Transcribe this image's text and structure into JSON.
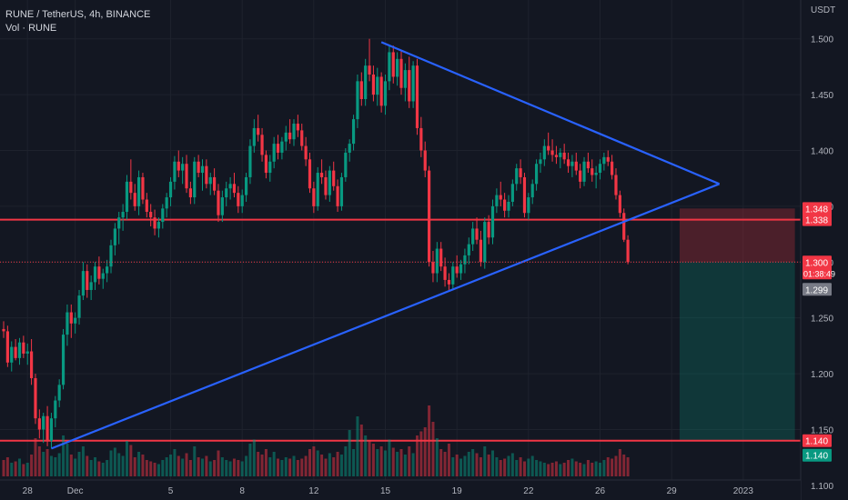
{
  "header": {
    "symbol_line": "RUNE / TetherUS, 4h, BINANCE",
    "volume_line": "Vol · RUNE"
  },
  "chart_data": {
    "type": "candlestick",
    "currency_label": "USDT",
    "ylim": [
      1.095,
      1.525
    ],
    "y_ticks": [
      1.1,
      1.15,
      1.2,
      1.25,
      1.3,
      1.35,
      1.4,
      1.45,
      1.5
    ],
    "x_ticks": [
      {
        "i": 6,
        "label": "28"
      },
      {
        "i": 18,
        "label": "Dec"
      },
      {
        "i": 42,
        "label": "5"
      },
      {
        "i": 60,
        "label": "8"
      },
      {
        "i": 78,
        "label": "12"
      },
      {
        "i": 96,
        "label": "15"
      },
      {
        "i": 114,
        "label": "19"
      },
      {
        "i": 132,
        "label": "22"
      },
      {
        "i": 150,
        "label": "26"
      },
      {
        "i": 168,
        "label": "29"
      },
      {
        "i": 186,
        "label": "2023"
      }
    ],
    "horizontal_lines": [
      1.338,
      1.14
    ],
    "price_tags": [
      {
        "value": 1.348,
        "label": "1.348",
        "bg": "#f23645"
      },
      {
        "value": 1.338,
        "label": "1.338",
        "bg": "#f23645"
      },
      {
        "value": 1.3,
        "label": "1.300",
        "sub": "01:38:49",
        "bg": "#f23645"
      },
      {
        "value": 1.299,
        "label": "1.299",
        "bg": "#787b86"
      },
      {
        "value": 1.14,
        "label": "1.140",
        "bg": "#f23645"
      },
      {
        "value": 1.14,
        "label": "1.140",
        "bg": "#089981"
      }
    ],
    "trendlines": [
      {
        "from": [
          95,
          1.497
        ],
        "to": [
          180,
          1.37
        ]
      },
      {
        "from": [
          12,
          1.133
        ],
        "to": [
          180,
          1.37
        ]
      }
    ],
    "position": {
      "entry": 1.3,
      "stop": 1.348,
      "target": 1.14,
      "start_i": 170,
      "end_i": 199
    },
    "ohlc": [
      [
        1.24,
        1.247,
        1.232,
        1.238
      ],
      [
        1.238,
        1.243,
        1.206,
        1.21
      ],
      [
        1.21,
        1.229,
        1.202,
        1.224
      ],
      [
        1.224,
        1.231,
        1.212,
        1.214
      ],
      [
        1.214,
        1.232,
        1.208,
        1.228
      ],
      [
        1.228,
        1.234,
        1.214,
        1.218
      ],
      [
        1.218,
        1.227,
        1.208,
        1.22
      ],
      [
        1.22,
        1.231,
        1.19,
        1.196
      ],
      [
        1.196,
        1.2,
        1.155,
        1.16
      ],
      [
        1.16,
        1.168,
        1.142,
        1.15
      ],
      [
        1.15,
        1.165,
        1.138,
        1.162
      ],
      [
        1.162,
        1.171,
        1.135,
        1.14
      ],
      [
        1.14,
        1.165,
        1.133,
        1.16
      ],
      [
        1.16,
        1.18,
        1.152,
        1.176
      ],
      [
        1.176,
        1.195,
        1.17,
        1.19
      ],
      [
        1.19,
        1.24,
        1.186,
        1.235
      ],
      [
        1.235,
        1.262,
        1.225,
        1.255
      ],
      [
        1.255,
        1.262,
        1.232,
        1.245
      ],
      [
        1.245,
        1.255,
        1.236,
        1.25
      ],
      [
        1.25,
        1.275,
        1.244,
        1.27
      ],
      [
        1.27,
        1.3,
        1.266,
        1.292
      ],
      [
        1.292,
        1.298,
        1.268,
        1.275
      ],
      [
        1.275,
        1.288,
        1.266,
        1.282
      ],
      [
        1.282,
        1.3,
        1.275,
        1.296
      ],
      [
        1.296,
        1.305,
        1.28,
        1.285
      ],
      [
        1.285,
        1.294,
        1.276,
        1.29
      ],
      [
        1.29,
        1.302,
        1.282,
        1.296
      ],
      [
        1.296,
        1.32,
        1.29,
        1.315
      ],
      [
        1.315,
        1.335,
        1.306,
        1.33
      ],
      [
        1.33,
        1.345,
        1.316,
        1.34
      ],
      [
        1.34,
        1.352,
        1.328,
        1.345
      ],
      [
        1.345,
        1.378,
        1.338,
        1.372
      ],
      [
        1.372,
        1.392,
        1.356,
        1.362
      ],
      [
        1.362,
        1.37,
        1.346,
        1.35
      ],
      [
        1.35,
        1.382,
        1.342,
        1.376
      ],
      [
        1.376,
        1.38,
        1.352,
        1.356
      ],
      [
        1.356,
        1.362,
        1.34,
        1.345
      ],
      [
        1.345,
        1.352,
        1.332,
        1.34
      ],
      [
        1.34,
        1.347,
        1.324,
        1.33
      ],
      [
        1.33,
        1.34,
        1.322,
        1.336
      ],
      [
        1.336,
        1.352,
        1.33,
        1.348
      ],
      [
        1.348,
        1.362,
        1.34,
        1.358
      ],
      [
        1.358,
        1.376,
        1.35,
        1.372
      ],
      [
        1.372,
        1.395,
        1.365,
        1.39
      ],
      [
        1.39,
        1.4,
        1.376,
        1.382
      ],
      [
        1.382,
        1.394,
        1.37,
        1.388
      ],
      [
        1.388,
        1.396,
        1.362,
        1.366
      ],
      [
        1.366,
        1.372,
        1.352,
        1.358
      ],
      [
        1.358,
        1.394,
        1.352,
        1.39
      ],
      [
        1.39,
        1.396,
        1.376,
        1.38
      ],
      [
        1.38,
        1.392,
        1.364,
        1.386
      ],
      [
        1.386,
        1.392,
        1.366,
        1.37
      ],
      [
        1.37,
        1.38,
        1.36,
        1.376
      ],
      [
        1.376,
        1.384,
        1.36,
        1.364
      ],
      [
        1.364,
        1.37,
        1.336,
        1.342
      ],
      [
        1.342,
        1.364,
        1.336,
        1.358
      ],
      [
        1.358,
        1.372,
        1.35,
        1.366
      ],
      [
        1.366,
        1.376,
        1.356,
        1.37
      ],
      [
        1.37,
        1.38,
        1.358,
        1.362
      ],
      [
        1.362,
        1.368,
        1.344,
        1.35
      ],
      [
        1.35,
        1.365,
        1.344,
        1.36
      ],
      [
        1.36,
        1.38,
        1.354,
        1.376
      ],
      [
        1.376,
        1.41,
        1.37,
        1.404
      ],
      [
        1.404,
        1.428,
        1.398,
        1.42
      ],
      [
        1.42,
        1.432,
        1.408,
        1.414
      ],
      [
        1.414,
        1.42,
        1.39,
        1.396
      ],
      [
        1.396,
        1.4,
        1.375,
        1.38
      ],
      [
        1.38,
        1.396,
        1.372,
        1.39
      ],
      [
        1.39,
        1.412,
        1.384,
        1.406
      ],
      [
        1.406,
        1.414,
        1.392,
        1.398
      ],
      [
        1.398,
        1.412,
        1.392,
        1.408
      ],
      [
        1.408,
        1.422,
        1.4,
        1.416
      ],
      [
        1.416,
        1.428,
        1.406,
        1.41
      ],
      [
        1.41,
        1.428,
        1.404,
        1.424
      ],
      [
        1.424,
        1.432,
        1.412,
        1.418
      ],
      [
        1.418,
        1.424,
        1.4,
        1.404
      ],
      [
        1.404,
        1.412,
        1.386,
        1.392
      ],
      [
        1.392,
        1.398,
        1.362,
        1.366
      ],
      [
        1.366,
        1.372,
        1.344,
        1.35
      ],
      [
        1.35,
        1.385,
        1.346,
        1.38
      ],
      [
        1.38,
        1.392,
        1.37,
        1.376
      ],
      [
        1.376,
        1.382,
        1.356,
        1.36
      ],
      [
        1.36,
        1.386,
        1.354,
        1.382
      ],
      [
        1.382,
        1.39,
        1.364,
        1.368
      ],
      [
        1.368,
        1.374,
        1.345,
        1.35
      ],
      [
        1.35,
        1.38,
        1.346,
        1.376
      ],
      [
        1.376,
        1.402,
        1.372,
        1.398
      ],
      [
        1.398,
        1.41,
        1.39,
        1.406
      ],
      [
        1.406,
        1.432,
        1.4,
        1.428
      ],
      [
        1.428,
        1.468,
        1.42,
        1.462
      ],
      [
        1.462,
        1.47,
        1.44,
        1.446
      ],
      [
        1.446,
        1.482,
        1.44,
        1.476
      ],
      [
        1.476,
        1.5,
        1.462,
        1.468
      ],
      [
        1.468,
        1.476,
        1.444,
        1.45
      ],
      [
        1.45,
        1.474,
        1.44,
        1.466
      ],
      [
        1.466,
        1.47,
        1.434,
        1.44
      ],
      [
        1.44,
        1.468,
        1.432,
        1.462
      ],
      [
        1.462,
        1.494,
        1.454,
        1.488
      ],
      [
        1.488,
        1.494,
        1.46,
        1.466
      ],
      [
        1.466,
        1.488,
        1.458,
        1.482
      ],
      [
        1.482,
        1.49,
        1.45,
        1.456
      ],
      [
        1.456,
        1.478,
        1.444,
        1.472
      ],
      [
        1.472,
        1.484,
        1.438,
        1.444
      ],
      [
        1.444,
        1.48,
        1.438,
        1.476
      ],
      [
        1.476,
        1.482,
        1.414,
        1.42
      ],
      [
        1.42,
        1.43,
        1.394,
        1.4
      ],
      [
        1.4,
        1.408,
        1.376,
        1.382
      ],
      [
        1.382,
        1.386,
        1.296,
        1.3
      ],
      [
        1.3,
        1.31,
        1.282,
        1.29
      ],
      [
        1.29,
        1.318,
        1.282,
        1.312
      ],
      [
        1.312,
        1.318,
        1.292,
        1.296
      ],
      [
        1.296,
        1.304,
        1.278,
        1.284
      ],
      [
        1.284,
        1.29,
        1.275,
        1.28
      ],
      [
        1.28,
        1.3,
        1.276,
        1.296
      ],
      [
        1.296,
        1.306,
        1.286,
        1.29
      ],
      [
        1.29,
        1.302,
        1.284,
        1.298
      ],
      [
        1.298,
        1.312,
        1.29,
        1.306
      ],
      [
        1.306,
        1.322,
        1.298,
        1.316
      ],
      [
        1.316,
        1.336,
        1.31,
        1.33
      ],
      [
        1.33,
        1.34,
        1.316,
        1.32
      ],
      [
        1.32,
        1.328,
        1.296,
        1.3
      ],
      [
        1.3,
        1.34,
        1.294,
        1.336
      ],
      [
        1.336,
        1.342,
        1.316,
        1.322
      ],
      [
        1.322,
        1.356,
        1.316,
        1.35
      ],
      [
        1.35,
        1.366,
        1.344,
        1.36
      ],
      [
        1.36,
        1.372,
        1.35,
        1.356
      ],
      [
        1.356,
        1.362,
        1.34,
        1.346
      ],
      [
        1.346,
        1.36,
        1.34,
        1.354
      ],
      [
        1.354,
        1.374,
        1.35,
        1.37
      ],
      [
        1.37,
        1.388,
        1.364,
        1.384
      ],
      [
        1.384,
        1.392,
        1.37,
        1.376
      ],
      [
        1.376,
        1.38,
        1.34,
        1.344
      ],
      [
        1.344,
        1.362,
        1.338,
        1.358
      ],
      [
        1.358,
        1.374,
        1.352,
        1.37
      ],
      [
        1.37,
        1.392,
        1.364,
        1.388
      ],
      [
        1.388,
        1.398,
        1.38,
        1.392
      ],
      [
        1.392,
        1.41,
        1.386,
        1.404
      ],
      [
        1.404,
        1.416,
        1.396,
        1.4
      ],
      [
        1.4,
        1.41,
        1.39,
        1.396
      ],
      [
        1.396,
        1.404,
        1.388,
        1.394
      ],
      [
        1.394,
        1.402,
        1.384,
        1.398
      ],
      [
        1.398,
        1.406,
        1.388,
        1.392
      ],
      [
        1.392,
        1.398,
        1.38,
        1.386
      ],
      [
        1.386,
        1.396,
        1.376,
        1.39
      ],
      [
        1.39,
        1.398,
        1.378,
        1.382
      ],
      [
        1.382,
        1.388,
        1.366,
        1.372
      ],
      [
        1.372,
        1.394,
        1.368,
        1.39
      ],
      [
        1.39,
        1.398,
        1.38,
        1.384
      ],
      [
        1.384,
        1.392,
        1.372,
        1.378
      ],
      [
        1.378,
        1.386,
        1.366,
        1.38
      ],
      [
        1.38,
        1.392,
        1.374,
        1.388
      ],
      [
        1.388,
        1.398,
        1.382,
        1.394
      ],
      [
        1.394,
        1.4,
        1.386,
        1.39
      ],
      [
        1.39,
        1.396,
        1.374,
        1.378
      ],
      [
        1.378,
        1.384,
        1.356,
        1.36
      ],
      [
        1.36,
        1.364,
        1.34,
        1.344
      ],
      [
        1.344,
        1.348,
        1.318,
        1.32
      ],
      [
        1.32,
        1.324,
        1.298,
        1.3
      ]
    ],
    "volume": [
      0.12,
      0.14,
      0.1,
      0.11,
      0.13,
      0.09,
      0.1,
      0.16,
      0.28,
      0.22,
      0.18,
      0.2,
      0.15,
      0.14,
      0.17,
      0.3,
      0.24,
      0.16,
      0.13,
      0.18,
      0.22,
      0.15,
      0.12,
      0.14,
      0.11,
      0.1,
      0.12,
      0.19,
      0.21,
      0.17,
      0.15,
      0.26,
      0.23,
      0.14,
      0.18,
      0.16,
      0.12,
      0.11,
      0.1,
      0.09,
      0.12,
      0.14,
      0.16,
      0.2,
      0.15,
      0.13,
      0.17,
      0.12,
      0.22,
      0.14,
      0.13,
      0.15,
      0.11,
      0.12,
      0.19,
      0.14,
      0.12,
      0.11,
      0.13,
      0.12,
      0.11,
      0.15,
      0.24,
      0.27,
      0.18,
      0.16,
      0.2,
      0.14,
      0.18,
      0.13,
      0.12,
      0.14,
      0.13,
      0.15,
      0.12,
      0.13,
      0.15,
      0.2,
      0.22,
      0.19,
      0.16,
      0.13,
      0.17,
      0.14,
      0.18,
      0.16,
      0.22,
      0.34,
      0.2,
      0.44,
      0.38,
      0.3,
      0.26,
      0.24,
      0.2,
      0.22,
      0.19,
      0.27,
      0.21,
      0.18,
      0.2,
      0.16,
      0.22,
      0.17,
      0.3,
      0.33,
      0.36,
      0.52,
      0.4,
      0.28,
      0.2,
      0.18,
      0.24,
      0.14,
      0.16,
      0.13,
      0.15,
      0.18,
      0.2,
      0.17,
      0.14,
      0.22,
      0.16,
      0.19,
      0.14,
      0.12,
      0.13,
      0.15,
      0.17,
      0.12,
      0.14,
      0.11,
      0.13,
      0.15,
      0.12,
      0.11,
      0.1,
      0.09,
      0.1,
      0.11,
      0.09,
      0.1,
      0.12,
      0.13,
      0.11,
      0.1,
      0.09,
      0.12,
      0.1,
      0.11,
      0.1,
      0.12,
      0.14,
      0.13,
      0.15,
      0.2,
      0.16,
      0.14
    ]
  }
}
